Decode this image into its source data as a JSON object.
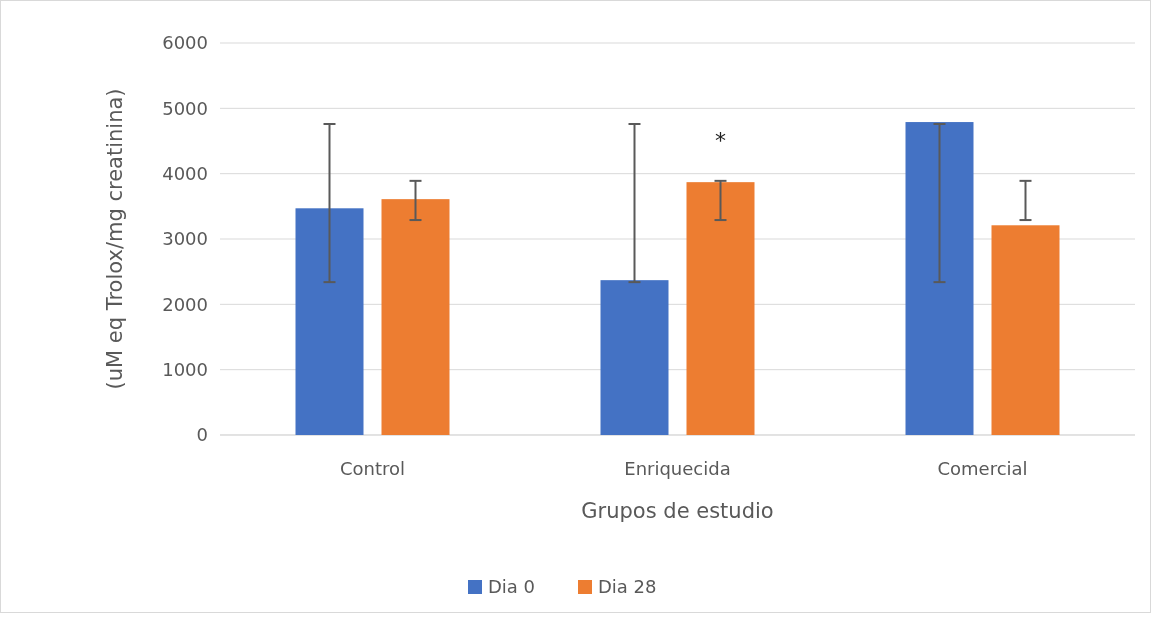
{
  "chart_data": {
    "type": "bar",
    "xlabel": "Grupos de estudio",
    "ylabel": "(uM eq Trolox/mg creatinina)",
    "categories": [
      "Control",
      "Enriquecida",
      "Comercial"
    ],
    "series": [
      {
        "name": "Dia 0",
        "color": "#4472c4",
        "values": [
          3470,
          2370,
          4790
        ],
        "errors": [
          [
            2340,
            4760
          ],
          [
            2340,
            4760
          ],
          [
            2340,
            4760
          ]
        ]
      },
      {
        "name": "Dia 28",
        "color": "#ed7d31",
        "values": [
          3610,
          3870,
          3210
        ],
        "errors": [
          [
            3290,
            3890
          ],
          [
            3290,
            3890
          ],
          [
            3290,
            3890
          ]
        ]
      }
    ],
    "ylim": [
      0,
      6000
    ],
    "yticks": [
      0,
      1000,
      2000,
      3000,
      4000,
      5000,
      6000
    ],
    "grid": "y",
    "legend": "bottom",
    "annotations": [
      "*"
    ]
  }
}
